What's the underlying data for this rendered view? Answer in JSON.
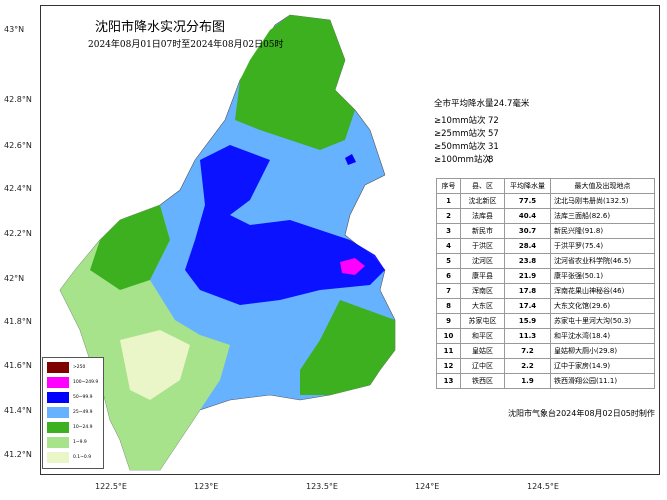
{
  "title": "沈阳市降水实况分布图",
  "subtitle": "2024年08月01日07时至2024年08月02日05时",
  "summary": {
    "average": "全市平均降水量24.7毫米",
    "counts": [
      {
        "label": "≥10mm站次",
        "value": "72"
      },
      {
        "label": "≥25mm站次",
        "value": "57"
      },
      {
        "label": "≥50mm站次",
        "value": "31"
      },
      {
        "label": "≥100mm站次",
        "value": "8"
      }
    ]
  },
  "table": {
    "headers": [
      "序号",
      "县、区",
      "平均降水量",
      "最大值及出现地点"
    ],
    "rows": [
      [
        "1",
        "沈北新区",
        "77.5",
        "沈北马刚韦册尚(132.5)"
      ],
      [
        "2",
        "法库县",
        "40.4",
        "法库三面船(82.6)"
      ],
      [
        "3",
        "新民市",
        "30.7",
        "新民兴隆(91.8)"
      ],
      [
        "4",
        "于洪区",
        "28.4",
        "于洪平罗(75.4)"
      ],
      [
        "5",
        "沈河区",
        "23.8",
        "沈河省农业科学院(46.5)"
      ],
      [
        "6",
        "康平县",
        "21.9",
        "康平张强(50.1)"
      ],
      [
        "7",
        "浑南区",
        "17.8",
        "浑南花果山神秘谷(46)"
      ],
      [
        "8",
        "大东区",
        "17.4",
        "大东文化馆(29.6)"
      ],
      [
        "9",
        "苏家屯区",
        "15.9",
        "苏家屯十里河大沟(50.3)"
      ],
      [
        "10",
        "和平区",
        "11.3",
        "和平沈水湾(18.4)"
      ],
      [
        "11",
        "皇姑区",
        "7.2",
        "皇姑柳大厕小(29.8)"
      ],
      [
        "12",
        "辽中区",
        "2.2",
        "辽中于家房(14.9)"
      ],
      [
        "13",
        "铁西区",
        "1.9",
        "铁西滑翔公园(11.1)"
      ]
    ]
  },
  "credit": "沈阳市气象台2024年08月02日05时制作",
  "legend": [
    {
      "label": ">250",
      "color": "#800000"
    },
    {
      "label": "100~249.9",
      "color": "#ff00ff"
    },
    {
      "label": "50~99.9",
      "color": "#0000ff"
    },
    {
      "label": "25~49.9",
      "color": "#66b2ff"
    },
    {
      "label": "10~24.9",
      "color": "#3cb01e"
    },
    {
      "label": "1~9.9",
      "color": "#a6e38a"
    },
    {
      "label": "0.1~0.9",
      "color": "#eaf5c8"
    }
  ],
  "axes": {
    "lat": [
      "43°N",
      "42.8°N",
      "42.6°N",
      "42.4°N",
      "42.2°N",
      "42°N",
      "41.8°N",
      "41.6°N",
      "41.4°N",
      "41.2°N"
    ],
    "lon": [
      "122.5°E",
      "123°E",
      "123.5°E",
      "124°E",
      "124.5°E"
    ]
  }
}
